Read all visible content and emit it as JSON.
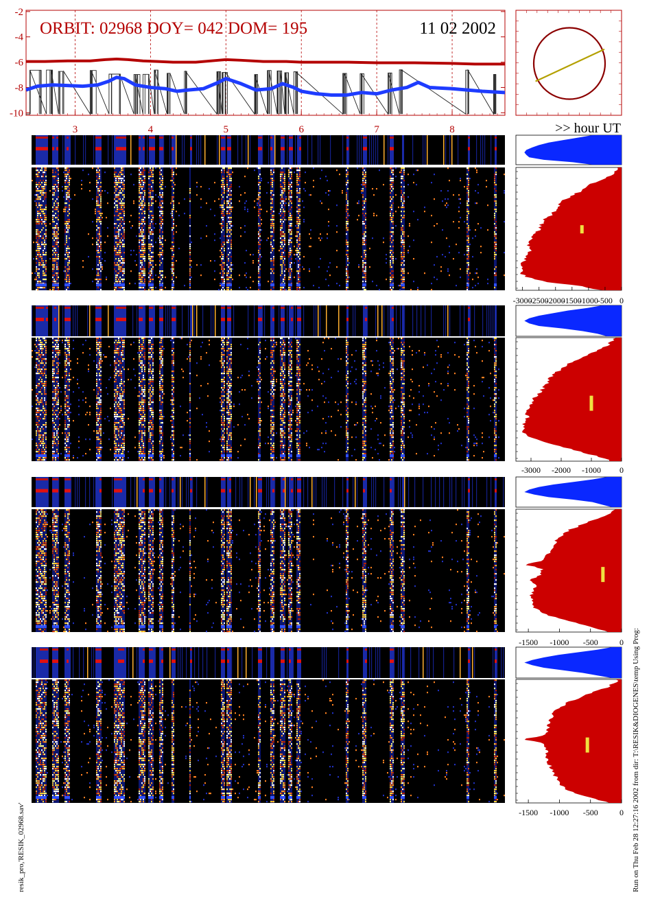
{
  "header": {
    "orbit_text": "ORBIT: 02968 DOY=  042 DOM=  195",
    "date_text": "11 02 2002",
    "hour_label": ">> hour UT"
  },
  "footer": {
    "left_text": "resik_pro,'RESIK_02968.sav'",
    "right_text": "Run on Thu Feb 28 12:27:16 2002  from dir: T:\\RESIK&DIOGENES\\temp Using Prog:"
  },
  "colors": {
    "red_curve": "#b40000",
    "blue_curve": "#1e3cff",
    "hist_red": "#cc0000",
    "hist_blue": "#0a28ff",
    "orbit_line": "#b4a000",
    "marker": "#f0e040"
  },
  "chart_data": [
    {
      "type": "line",
      "title": "ORBIT: 02968 DOY=  042 DOM=  195",
      "xlabel": ">> hour UT",
      "x_ticks": [
        3,
        4,
        5,
        6,
        7,
        8
      ],
      "x_tick_labels": [
        "3",
        "4",
        "5",
        "6",
        "7",
        "8"
      ],
      "xlim": [
        2.35,
        8.7
      ],
      "y_ticks": [
        -2,
        -4,
        -6,
        -8,
        -10
      ],
      "y_tick_labels": [
        "-2",
        "-4",
        "-6",
        "-8",
        "-10"
      ],
      "ylim": [
        -10.2,
        -1.9
      ],
      "series": [
        {
          "x": [
            2.35,
            2.6,
            2.9,
            3.2,
            3.4,
            3.55,
            3.7,
            3.9,
            4.1,
            4.3,
            4.6,
            4.9,
            5.0,
            5.2,
            5.5,
            5.8,
            6.0,
            6.3,
            6.6,
            7.0,
            7.5,
            8.0,
            8.3,
            8.7
          ],
          "y": [
            -5.95,
            -5.95,
            -5.9,
            -5.9,
            -5.8,
            -5.75,
            -5.8,
            -5.9,
            -5.95,
            -6.0,
            -6.0,
            -5.85,
            -5.8,
            -5.85,
            -5.95,
            -5.95,
            -6.0,
            -6.0,
            -6.0,
            -6.05,
            -6.05,
            -6.1,
            -6.15,
            -6.15
          ]
        },
        {
          "x": [
            2.35,
            2.5,
            2.7,
            2.9,
            3.1,
            3.3,
            3.45,
            3.55,
            3.65,
            3.8,
            4.0,
            4.2,
            4.35,
            4.5,
            4.7,
            4.9,
            5.0,
            5.2,
            5.4,
            5.6,
            5.75,
            5.9,
            6.0,
            6.2,
            6.4,
            6.6,
            6.8,
            7.0,
            7.2,
            7.4,
            7.55,
            7.7,
            8.0,
            8.2,
            8.4,
            8.7
          ],
          "y": [
            -8.2,
            -7.9,
            -7.8,
            -7.85,
            -7.9,
            -7.8,
            -7.5,
            -7.2,
            -7.3,
            -7.8,
            -8.0,
            -8.1,
            -8.3,
            -8.2,
            -8.1,
            -7.6,
            -7.3,
            -7.7,
            -8.2,
            -8.1,
            -7.7,
            -8.0,
            -8.3,
            -8.5,
            -8.6,
            -8.6,
            -8.4,
            -8.5,
            -8.2,
            -8.0,
            -7.6,
            -8.0,
            -8.1,
            -8.2,
            -8.3,
            -8.4
          ]
        }
      ]
    },
    {
      "type": "scatter",
      "description_values": {
        "circle": "orbit",
        "track": "ground track"
      },
      "track": {
        "start": [
          -0.95,
          -0.5
        ],
        "end": [
          0.98,
          0.4
        ]
      }
    },
    {
      "type": "heatmap",
      "panels": 4,
      "xlim": [
        2.35,
        8.7
      ],
      "active_intervals": [
        [
          2.4,
          2.55
        ],
        [
          2.62,
          2.7
        ],
        [
          2.78,
          2.85
        ],
        [
          3.2,
          3.28
        ],
        [
          3.45,
          3.6
        ],
        [
          3.78,
          3.86
        ],
        [
          3.9,
          3.98
        ],
        [
          4.05,
          4.1
        ],
        [
          4.22,
          4.26
        ],
        [
          4.45,
          4.48
        ],
        [
          4.88,
          4.93
        ],
        [
          4.95,
          5.02
        ],
        [
          5.38,
          5.42
        ],
        [
          5.55,
          5.6
        ],
        [
          5.68,
          5.74
        ],
        [
          5.78,
          5.83
        ],
        [
          5.9,
          5.95
        ],
        [
          6.55,
          6.6
        ],
        [
          6.78,
          6.83
        ],
        [
          7.15,
          7.2
        ],
        [
          7.3,
          7.34
        ],
        [
          8.18,
          8.22
        ],
        [
          8.55,
          8.58
        ]
      ]
    },
    {
      "type": "area",
      "panel": 1,
      "x_ticks": [
        -3000,
        -2500,
        -2000,
        -1500,
        -1000,
        -500,
        0
      ],
      "x_tick_labels": [
        "-3000",
        "-2500",
        "-2000",
        "-1500",
        "-1000",
        "-500",
        "0"
      ],
      "xlim": [
        -3200,
        0
      ],
      "profile_top": [
        0.02,
        0.05,
        0.1,
        0.18,
        0.28,
        0.35,
        0.4,
        0.48,
        0.55,
        0.6,
        0.62,
        0.65,
        0.7,
        0.75,
        0.78,
        0.8,
        0.82,
        0.85,
        0.88,
        0.9,
        0.92,
        0.9,
        0.93,
        0.95,
        0.97,
        0.98,
        0.99,
        0.98,
        0.9,
        0.7,
        0.4,
        0.2
      ],
      "profile_small": [
        0.3,
        0.45,
        0.6,
        0.75,
        0.85,
        0.92,
        0.98,
        1.0,
        0.98,
        0.95,
        0.8,
        0.5,
        0.3
      ],
      "marker": -1200
    },
    {
      "type": "area",
      "panel": 2,
      "x_ticks": [
        -3000,
        -2000,
        -1000,
        0
      ],
      "x_tick_labels": [
        "-3000",
        "-2000",
        "-1000",
        "0"
      ],
      "xlim": [
        -3500,
        0
      ],
      "profile_top": [
        0.05,
        0.1,
        0.15,
        0.22,
        0.3,
        0.4,
        0.48,
        0.55,
        0.6,
        0.65,
        0.7,
        0.72,
        0.75,
        0.78,
        0.82,
        0.85,
        0.88,
        0.9,
        0.92,
        0.95,
        0.93,
        0.95,
        0.96,
        0.98,
        0.97,
        0.9,
        0.8,
        0.65,
        0.5,
        0.35,
        0.2,
        0.1
      ],
      "profile_small": [
        0.2,
        0.35,
        0.55,
        0.7,
        0.85,
        0.95,
        1.0,
        0.95,
        0.85,
        0.6,
        0.4,
        0.25,
        0.15
      ],
      "marker": -1000
    },
    {
      "type": "area",
      "panel": 3,
      "x_ticks": [
        -1500,
        -1000,
        -500,
        0
      ],
      "x_tick_labels": [
        "-1500",
        "-1000",
        "-500",
        "0"
      ],
      "xlim": [
        -1700,
        0
      ],
      "profile_top": [
        0.05,
        0.1,
        0.2,
        0.3,
        0.4,
        0.5,
        0.55,
        0.6,
        0.65,
        0.68,
        0.7,
        0.72,
        0.74,
        0.76,
        0.95,
        0.78,
        0.8,
        0.82,
        0.9,
        0.85,
        0.86,
        0.88,
        0.9,
        0.88,
        0.86,
        0.85,
        0.8,
        0.7,
        0.55,
        0.4,
        0.25,
        0.12
      ],
      "profile_small": [
        0.15,
        0.3,
        0.5,
        0.7,
        0.85,
        0.95,
        1.0,
        0.9,
        0.75,
        0.5,
        0.3,
        0.2,
        0.1
      ],
      "marker": -300
    },
    {
      "type": "area",
      "panel": 4,
      "x_ticks": [
        -1500,
        -1000,
        -500,
        0
      ],
      "x_tick_labels": [
        "-1500",
        "-1000",
        "-500",
        "0"
      ],
      "xlim": [
        -1700,
        0
      ],
      "profile_top": [
        0.04,
        0.08,
        0.15,
        0.25,
        0.35,
        0.45,
        0.55,
        0.6,
        0.65,
        0.68,
        0.7,
        0.72,
        0.72,
        0.73,
        0.74,
        0.98,
        0.74,
        0.75,
        0.74,
        0.74,
        0.73,
        0.72,
        0.7,
        0.68,
        0.66,
        0.64,
        0.62,
        0.58,
        0.5,
        0.4,
        0.25,
        0.1
      ],
      "profile_small": [
        0.1,
        0.25,
        0.45,
        0.65,
        0.8,
        0.92,
        1.0,
        0.92,
        0.8,
        0.6,
        0.4,
        0.25,
        0.1
      ],
      "marker": -550
    }
  ]
}
